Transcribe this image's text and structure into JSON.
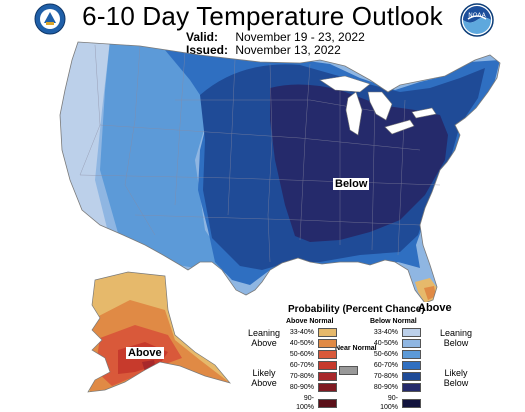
{
  "header": {
    "title": "6-10 Day Temperature Outlook",
    "valid_label": "Valid:",
    "valid_value": "November 19 - 23, 2022",
    "issued_label": "Issued:",
    "issued_value": "November 13, 2022"
  },
  "map_labels": {
    "below_main": "Below",
    "above_florida": "Above",
    "above_alaska": "Above"
  },
  "legend": {
    "title": "Probability (Percent Chance)",
    "above_header": "Above Normal",
    "below_header": "Below Normal",
    "near_label": "Near Normal",
    "leaning_above": "Leaning Above",
    "likely_above": "Likely Above",
    "leaning_below": "Leaning Below",
    "likely_below": "Likely Below",
    "above_rows": [
      {
        "pct": "33-40%",
        "color": "#e6b96b"
      },
      {
        "pct": "40-50%",
        "color": "#e08a45"
      },
      {
        "pct": "50-60%",
        "color": "#d9593a"
      },
      {
        "pct": "60-70%",
        "color": "#c73a2c"
      },
      {
        "pct": "70-80%",
        "color": "#a8282b"
      },
      {
        "pct": "80-90%",
        "color": "#7f1a22"
      },
      {
        "pct": "90-100%",
        "color": "#5a0f18"
      }
    ],
    "below_rows": [
      {
        "pct": "33-40%",
        "color": "#bcd0ea"
      },
      {
        "pct": "40-50%",
        "color": "#8fb6e2"
      },
      {
        "pct": "50-60%",
        "color": "#5c9ad8"
      },
      {
        "pct": "60-70%",
        "color": "#2f6fc1"
      },
      {
        "pct": "70-80%",
        "color": "#1f4b97"
      },
      {
        "pct": "80-90%",
        "color": "#252a6b"
      },
      {
        "pct": "90-100%",
        "color": "#12133d"
      }
    ],
    "near_color": "#999999"
  },
  "colors": {
    "lake": "#ffffff",
    "border": "#7a7a7a"
  },
  "logos": {
    "left_icon": "commerce-seal-icon",
    "right_icon": "noaa-logo-icon",
    "right_text": "NOAA"
  }
}
